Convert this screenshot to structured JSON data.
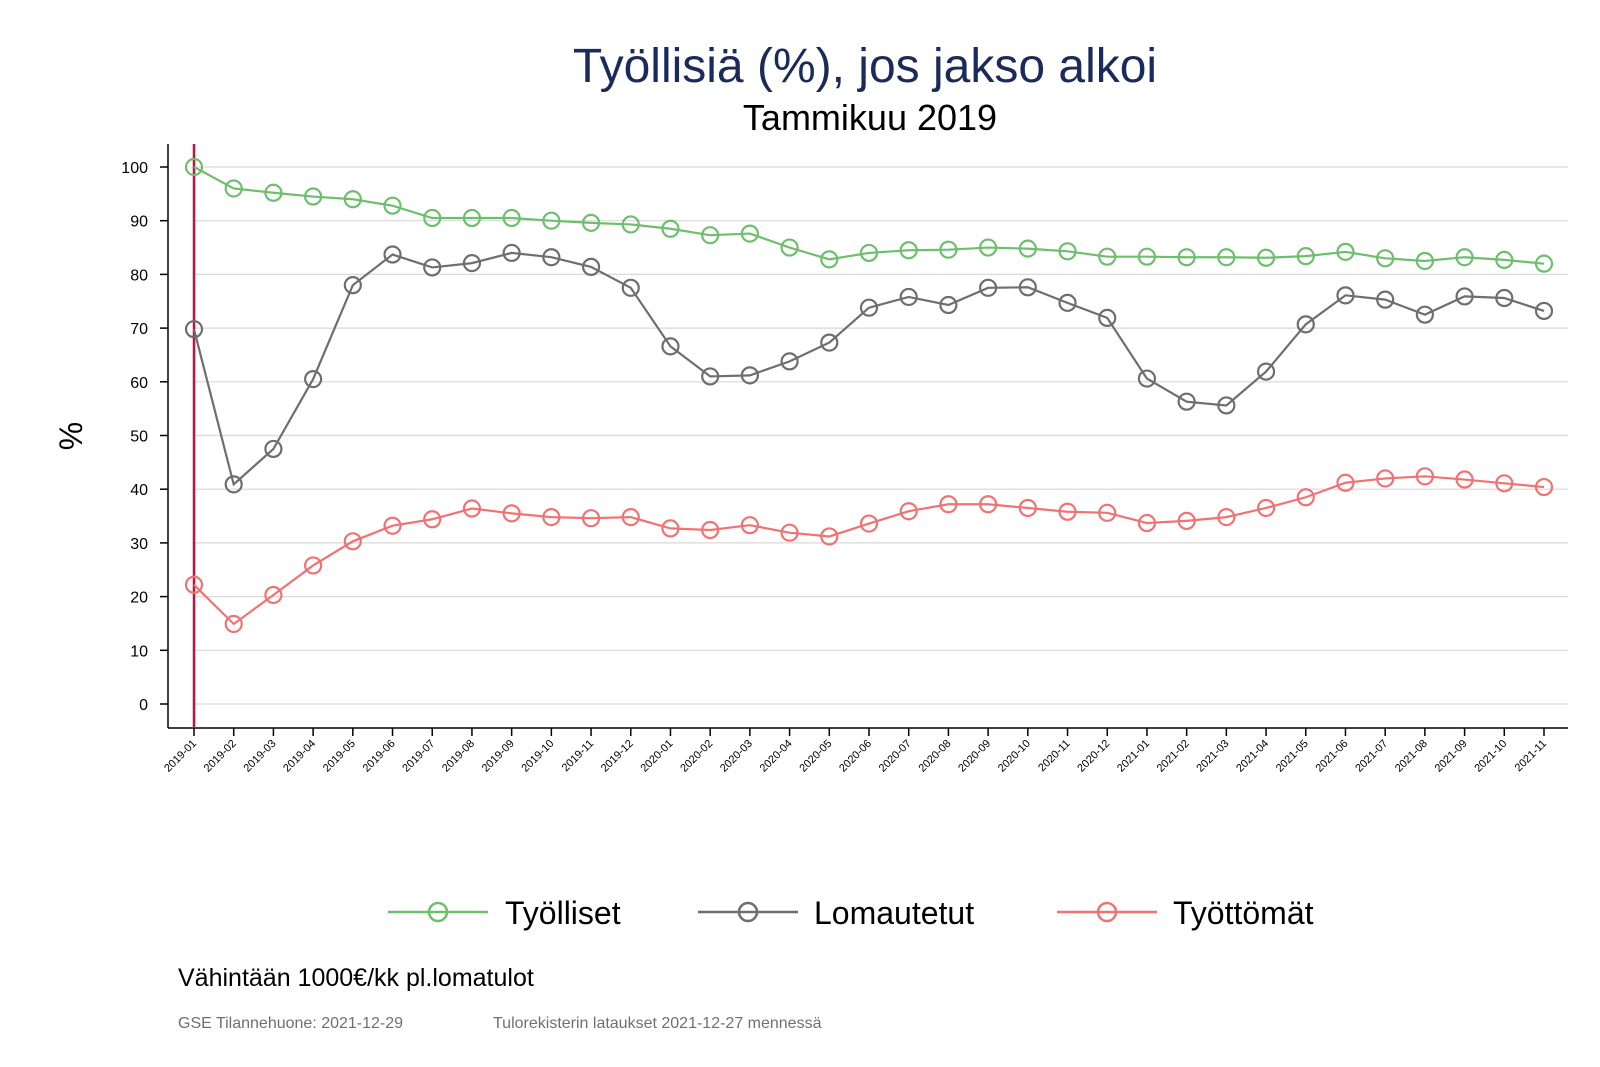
{
  "chart_data": {
    "type": "line",
    "title": "Työllisiä (%), jos jakso alkoi",
    "subtitle": "Tammikuu 2019",
    "xlabel": "",
    "ylabel": "%",
    "ylim": [
      0,
      100
    ],
    "yticks": [
      0,
      10,
      20,
      30,
      40,
      50,
      60,
      70,
      80,
      90,
      100
    ],
    "grid": true,
    "legend_position": "bottom",
    "reference_line": {
      "category": "2019-01",
      "color": "#c0143c"
    },
    "categories": [
      "2019-01",
      "2019-02",
      "2019-03",
      "2019-04",
      "2019-05",
      "2019-06",
      "2019-07",
      "2019-08",
      "2019-09",
      "2019-10",
      "2019-11",
      "2019-12",
      "2020-01",
      "2020-02",
      "2020-03",
      "2020-04",
      "2020-05",
      "2020-06",
      "2020-07",
      "2020-08",
      "2020-09",
      "2020-10",
      "2020-11",
      "2020-12",
      "2021-01",
      "2021-02",
      "2021-03",
      "2021-04",
      "2021-05",
      "2021-06",
      "2021-07",
      "2021-08",
      "2021-09",
      "2021-10",
      "2021-11"
    ],
    "series": [
      {
        "name": "Työlliset",
        "color": "#6dbf6d",
        "values": [
          100,
          96,
          95.2,
          94.5,
          94,
          92.8,
          90.5,
          90.5,
          90.5,
          90,
          89.6,
          89.3,
          88.5,
          87.3,
          87.6,
          85,
          82.8,
          84,
          84.5,
          84.6,
          85,
          84.8,
          84.3,
          83.3,
          83.3,
          83.2,
          83.2,
          83.1,
          83.4,
          84.2,
          83,
          82.5,
          83.2,
          82.7,
          82
        ]
      },
      {
        "name": "Lomautetut",
        "color": "#6e6e6e",
        "values": [
          69.8,
          40.9,
          47.5,
          60.5,
          78,
          83.7,
          81.3,
          82.1,
          84,
          83.2,
          81.4,
          77.5,
          66.6,
          61,
          61.2,
          63.8,
          67.3,
          73.8,
          75.8,
          74.3,
          77.5,
          77.6,
          74.7,
          71.9,
          60.6,
          56.3,
          55.6,
          61.9,
          70.7,
          76.1,
          75.3,
          72.5,
          75.9,
          75.6,
          73.2
        ]
      },
      {
        "name": "Työttömät",
        "color": "#f07373",
        "values": [
          22.2,
          14.9,
          20.3,
          25.8,
          30.3,
          33.2,
          34.4,
          36.4,
          35.5,
          34.8,
          34.6,
          34.8,
          32.7,
          32.4,
          33.3,
          31.9,
          31.2,
          33.6,
          35.9,
          37.2,
          37.2,
          36.5,
          35.8,
          35.6,
          33.7,
          34.1,
          34.8,
          36.5,
          38.5,
          41.2,
          42,
          42.4,
          41.8,
          41.1,
          40.4
        ]
      }
    ],
    "note": "Vähintään 1000€/kk pl.lomatulot",
    "source_left": "GSE Tilannehuone: 2021-12-29",
    "source_right": "Tulorekisterin lataukset 2021-12-27 mennessä"
  }
}
